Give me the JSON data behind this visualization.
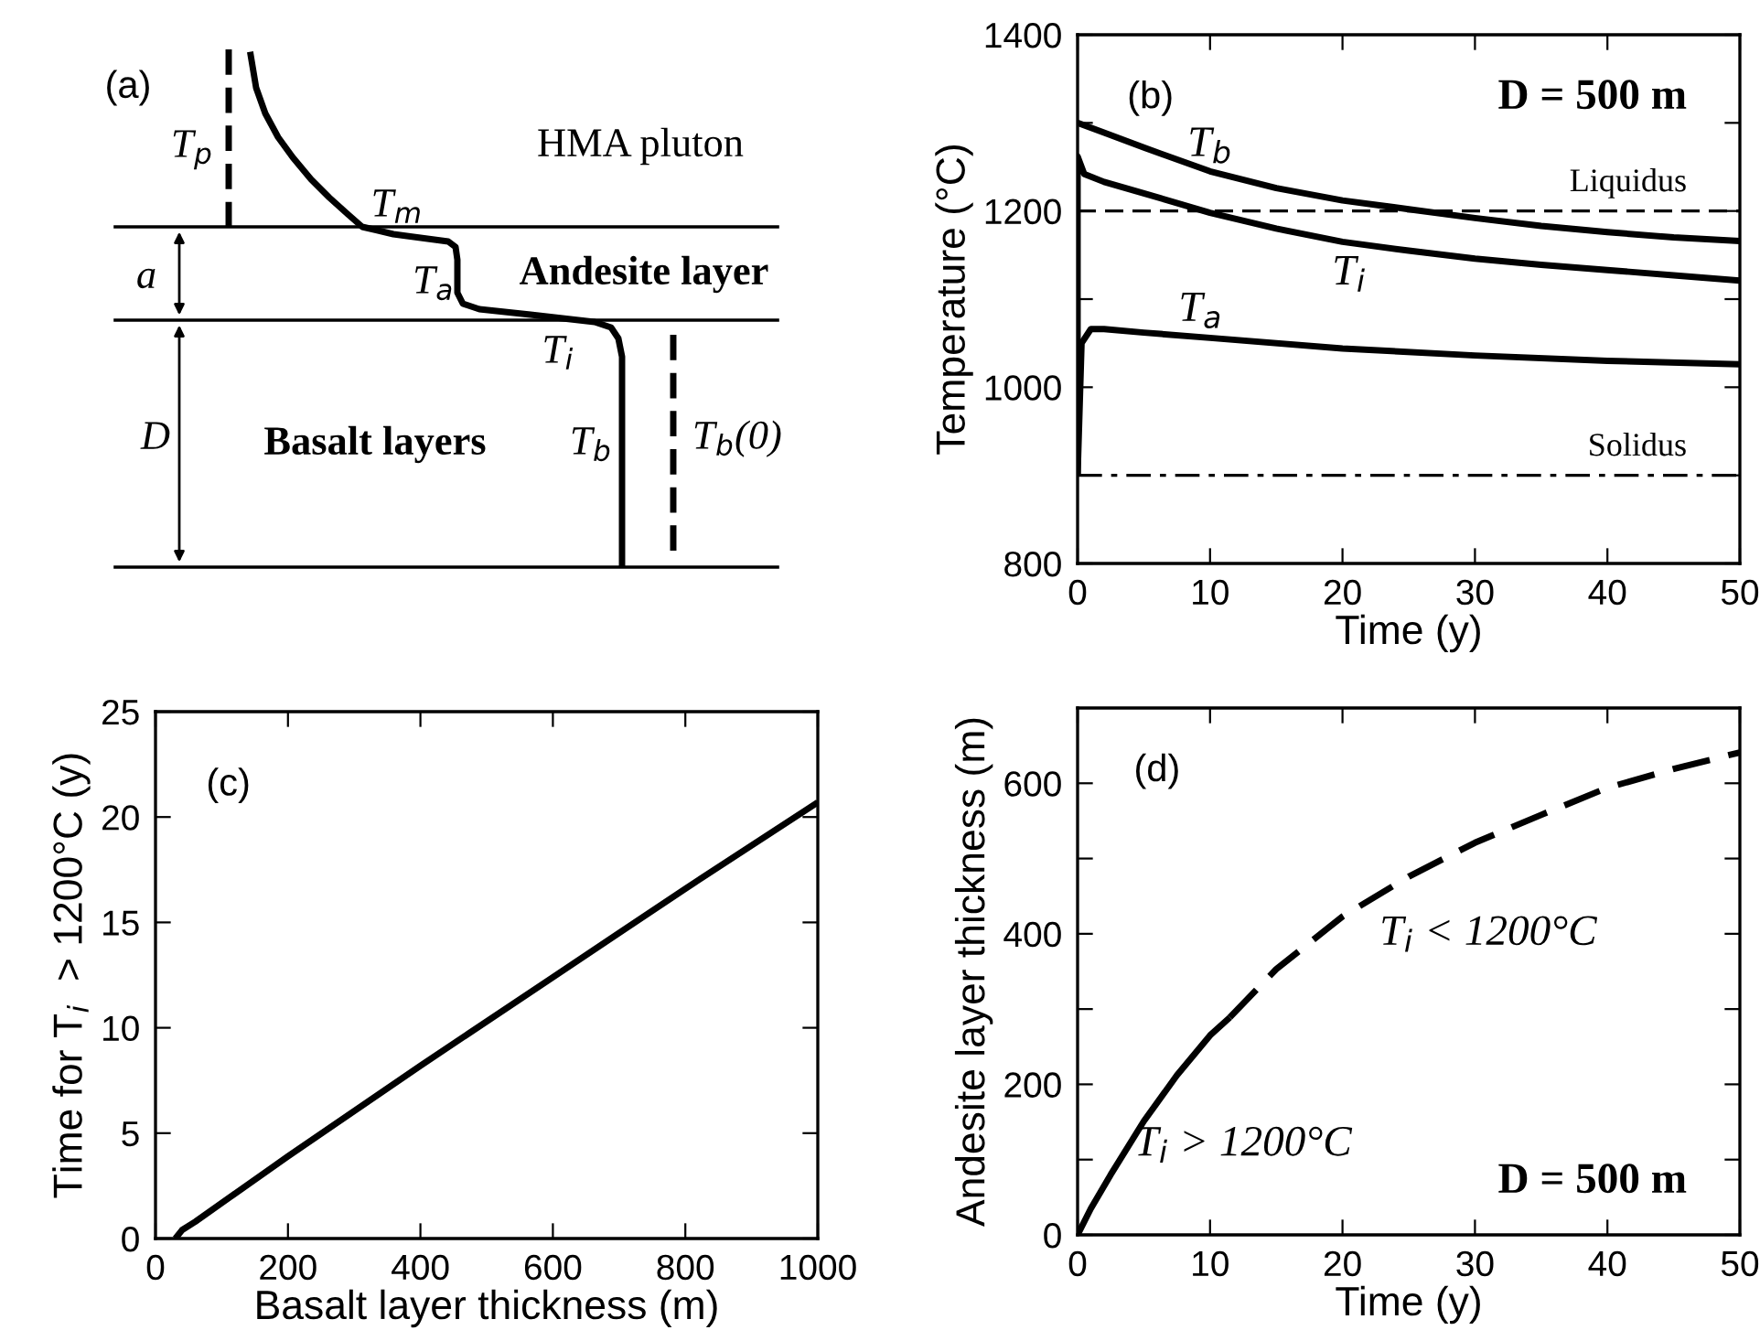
{
  "chart_data": [
    {
      "type": "other",
      "annotations": [
        "(a)",
        "T$_{p}$",
        "HMA pluton",
        "T$_{m}$",
        "a",
        "Andesite layer",
        "T$_{a}$",
        "T$_{i}$",
        "D",
        "Basalt layers",
        "T$_{b}$",
        "T$_{b}$(0)"
      ]
    },
    {
      "type": "line",
      "xlabel": "Time (y)",
      "ylabel": "Temperature (°C)",
      "xlim": [
        0,
        50
      ],
      "ylim": [
        800,
        1400
      ],
      "xticks": [
        0,
        10,
        20,
        30,
        40,
        50
      ],
      "yticks": [
        800,
        {
          "value": 900,
          "label": null
        },
        1000,
        {
          "value": 1100,
          "label": null
        },
        1200,
        {
          "value": 1300,
          "label": null
        },
        1400
      ],
      "series": [
        {
          "color": "#000000",
          "x": [
            0,
            2,
            5,
            10,
            15,
            20,
            25,
            30,
            35,
            40,
            45,
            50
          ],
          "values": [
            1300,
            1289,
            1272,
            1245,
            1226,
            1212,
            1202,
            1192,
            1183,
            1176,
            1170,
            1166
          ]
        },
        {
          "color": "#000000",
          "x": [
            0,
            0,
            0.5,
            2,
            5,
            10,
            15,
            20,
            25,
            30,
            35,
            40,
            45,
            50
          ],
          "values": [
            900,
            1262,
            1242,
            1233,
            1220,
            1198,
            1180,
            1165,
            1155,
            1146,
            1139,
            1133,
            1127,
            1121
          ]
        },
        {
          "color": "#000000",
          "x": [
            0,
            0.3,
            1,
            2,
            5,
            10,
            20,
            30,
            40,
            50
          ],
          "values": [
            900,
            1050,
            1066,
            1066,
            1062,
            1056,
            1044,
            1036,
            1030,
            1026
          ]
        }
      ],
      "ref_lines": [
        {
          "axis": "y",
          "value": 1200,
          "label": "Liquidus",
          "line_style": "dashed",
          "color": "#000000"
        },
        {
          "axis": "y",
          "value": 900,
          "label": "Solidus",
          "line_style": "dashdot",
          "color": "#000000"
        }
      ],
      "annotations": [
        "(b)",
        "D = 500 m",
        "T$_{b}$",
        "T$_{i}$",
        "T$_{a}$"
      ]
    },
    {
      "type": "line",
      "xlabel": "Basalt layer thickness (m)",
      "ylabel": "Time for T$_{i}$  > 1200°C (y)",
      "xlim": [
        0,
        1000
      ],
      "ylim": [
        0,
        25
      ],
      "xticks": [
        0,
        200,
        400,
        600,
        800,
        1000
      ],
      "yticks": [
        0,
        5,
        10,
        15,
        20,
        25
      ],
      "series": [
        {
          "color": "#000000",
          "x": [
            30,
            40,
            60,
            200,
            400,
            600,
            800,
            1000
          ],
          "values": [
            0,
            0.4,
            0.8,
            3.9,
            8.2,
            12.4,
            16.6,
            20.7
          ]
        }
      ],
      "annotations": [
        "(c)"
      ]
    },
    {
      "type": "line",
      "xlabel": "Time (y)",
      "ylabel": "Andesite layer thickness (m)",
      "xlim": [
        0,
        50
      ],
      "ylim": [
        0,
        700
      ],
      "xticks": [
        0,
        10,
        20,
        30,
        40,
        50
      ],
      "yticks": [
        0,
        {
          "value": 100,
          "label": null
        },
        200,
        {
          "value": 300,
          "label": null
        },
        400,
        {
          "value": 500,
          "label": null
        },
        600
      ],
      "series": [
        {
          "color": "#000000",
          "line_style": "solid",
          "x": [
            0,
            1,
            2.5,
            5,
            7.5,
            10,
            11.5
          ],
          "values": [
            0,
            35,
            80,
            151,
            212,
            265,
            289
          ]
        },
        {
          "color": "#000000",
          "line_style": "dashed",
          "x": [
            11.5,
            15,
            20,
            25,
            30,
            35,
            40,
            45,
            50
          ],
          "values": [
            289,
            353,
            423,
            476,
            521,
            558,
            594,
            619,
            641
          ]
        }
      ],
      "annotations": [
        "(d)",
        "D = 500 m",
        "T$_{i}$ > 1200°C",
        "T$_{i}$ < 1200°C"
      ]
    }
  ]
}
